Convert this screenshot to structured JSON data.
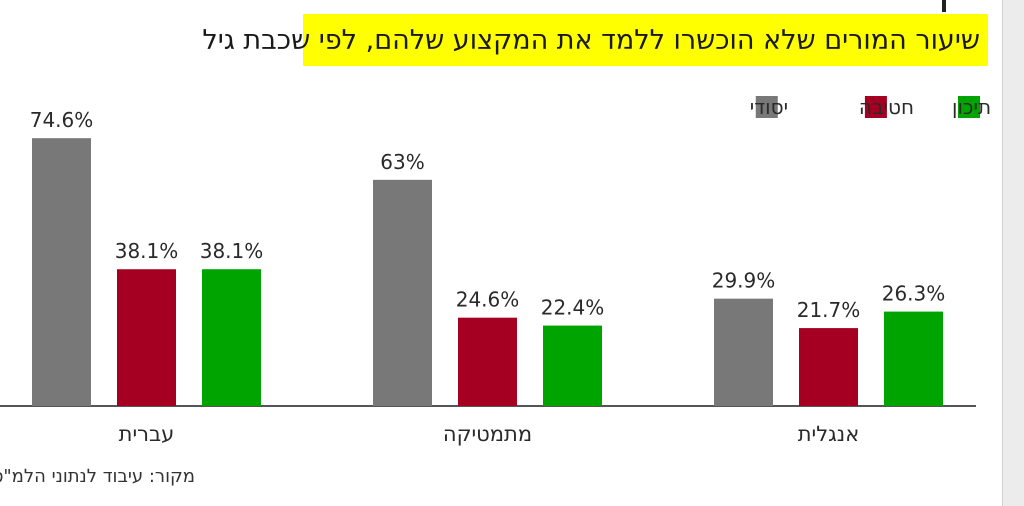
{
  "chart_data": {
    "type": "bar",
    "title": "שיעור המורים שלא הוכשרו ללמד את המקצוע שלהם, לפי  שכבת גיל",
    "categories": [
      "עברית",
      "מתמטיקה",
      "אנגלית"
    ],
    "series": [
      {
        "name": "יסודי",
        "color": "#787878",
        "values": [
          74.6,
          63,
          29.9
        ],
        "labels": [
          "74.6%",
          "63%",
          "29.9%"
        ]
      },
      {
        "name": "חטיבה",
        "color": "#a50021",
        "values": [
          38.1,
          24.6,
          21.7
        ],
        "labels": [
          "38.1%",
          "24.6%",
          "21.7%"
        ]
      },
      {
        "name": "תיכון",
        "color": "#00a400",
        "values": [
          38.1,
          22.4,
          26.3
        ],
        "labels": [
          "38.1%",
          "22.4%",
          "26.3%"
        ]
      }
    ],
    "legend_order": [
      "תיכון",
      "חטיבה",
      "יסודי"
    ],
    "legend_position": "top-right",
    "ylim": [
      0,
      100
    ],
    "grid": false
  },
  "source": "מקור: עיבוד לנתוני הלמ\"ס"
}
